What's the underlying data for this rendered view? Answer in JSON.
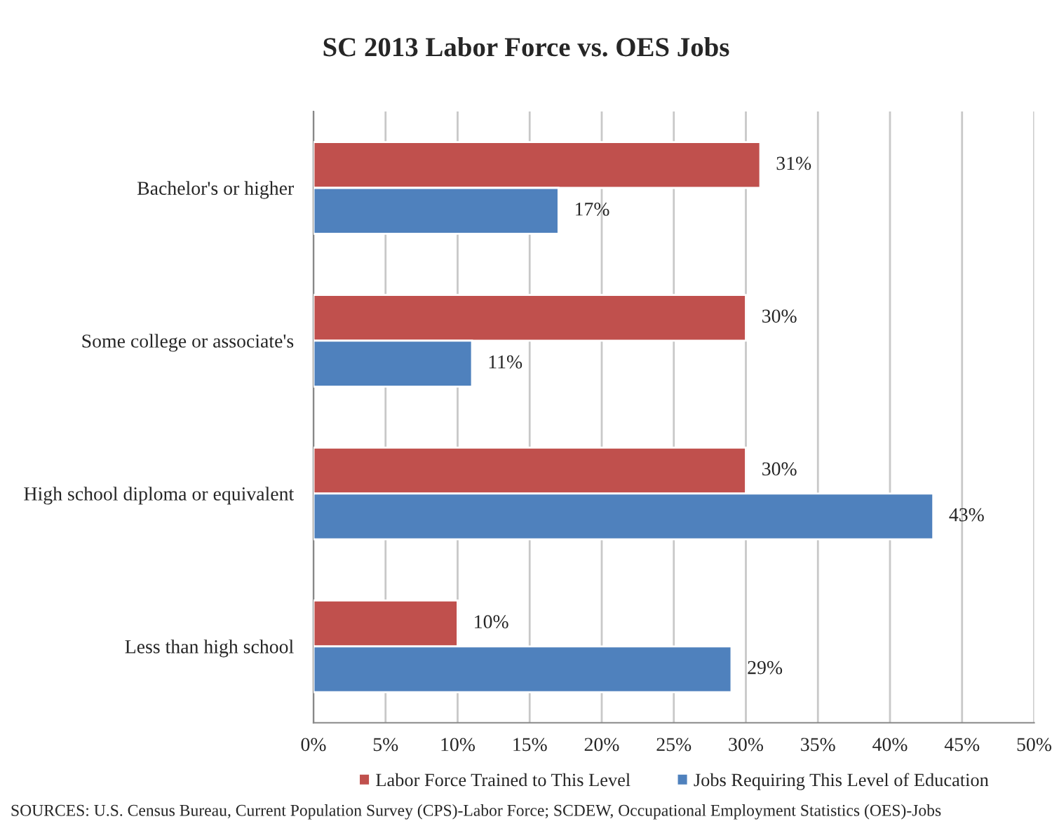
{
  "chart_data": {
    "type": "bar",
    "orientation": "horizontal",
    "title": "SC 2013 Labor Force vs. OES Jobs",
    "categories": [
      "Bachelor's or higher",
      "Some college or associate's",
      "High school diploma or equivalent",
      "Less than high school"
    ],
    "series": [
      {
        "name": "Labor Force Trained to This Level",
        "color": "#c0504d",
        "values": [
          31,
          30,
          30,
          10
        ],
        "value_labels": [
          "31%",
          "30%",
          "30%",
          "10%"
        ]
      },
      {
        "name": "Jobs Requiring This Level of Education",
        "color": "#4f81bd",
        "values": [
          17,
          11,
          43,
          29
        ],
        "value_labels": [
          "17%",
          "11%",
          "43%",
          "29%"
        ]
      }
    ],
    "xlim": [
      0,
      50
    ],
    "xticks": [
      {
        "value": 0,
        "label": "0%"
      },
      {
        "value": 5,
        "label": "5%"
      },
      {
        "value": 10,
        "label": "10%"
      },
      {
        "value": 15,
        "label": "15%"
      },
      {
        "value": 20,
        "label": "20%"
      },
      {
        "value": 25,
        "label": "25%"
      },
      {
        "value": 30,
        "label": "30%"
      },
      {
        "value": 35,
        "label": "35%"
      },
      {
        "value": 40,
        "label": "40%"
      },
      {
        "value": 45,
        "label": "45%"
      },
      {
        "value": 50,
        "label": "50%"
      }
    ],
    "grid": "x",
    "legend": "bottom",
    "annotations": [
      "SOURCES: U.S. Census Bureau, Current Population Survey (CPS)-Labor Force; SCDEW, Occupational Employment Statistics (OES)-Jobs"
    ]
  }
}
